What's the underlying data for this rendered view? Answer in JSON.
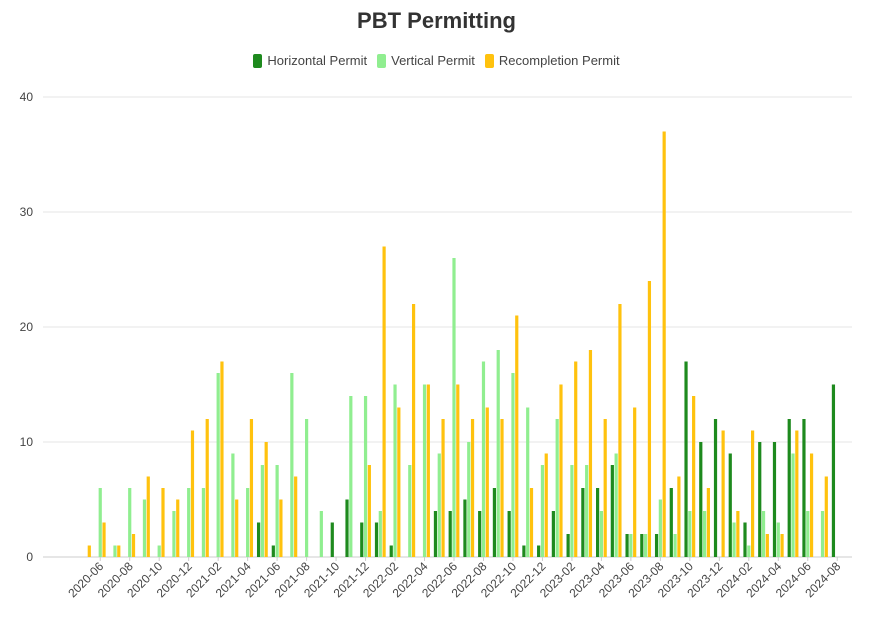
{
  "chart_data": {
    "type": "bar",
    "title": "PBT Permitting",
    "xlabel": "",
    "ylabel": "",
    "ylim": [
      0,
      40
    ],
    "yticks": [
      0,
      10,
      20,
      30,
      40
    ],
    "grid": true,
    "legend_position": "top-center",
    "categories": [
      "2020-05",
      "2020-06",
      "2020-07",
      "2020-08",
      "2020-09",
      "2020-10",
      "2020-11",
      "2020-12",
      "2021-01",
      "2021-02",
      "2021-03",
      "2021-04",
      "2021-05",
      "2021-06",
      "2021-07",
      "2021-08",
      "2021-09",
      "2021-10",
      "2021-11",
      "2021-12",
      "2022-01",
      "2022-02",
      "2022-03",
      "2022-04",
      "2022-05",
      "2022-06",
      "2022-07",
      "2022-08",
      "2022-09",
      "2022-10",
      "2022-11",
      "2022-12",
      "2023-01",
      "2023-02",
      "2023-03",
      "2023-04",
      "2023-05",
      "2023-06",
      "2023-07",
      "2023-08",
      "2023-09",
      "2023-10",
      "2023-11",
      "2023-12",
      "2024-01",
      "2024-02",
      "2024-03",
      "2024-04",
      "2024-05",
      "2024-06",
      "2024-07",
      "2024-08"
    ],
    "x_tick_labels": [
      "2020-06",
      "2020-08",
      "2020-10",
      "2020-12",
      "2021-02",
      "2021-04",
      "2021-06",
      "2021-08",
      "2021-10",
      "2021-12",
      "2022-02",
      "2022-04",
      "2022-06",
      "2022-08",
      "2022-10",
      "2022-12",
      "2023-02",
      "2023-04",
      "2023-06",
      "2023-08",
      "2023-10",
      "2023-12",
      "2024-02",
      "2024-04",
      "2024-06",
      "2024-08"
    ],
    "series": [
      {
        "name": "Horizontal Permit",
        "color": "#1e8a1e",
        "values": [
          0,
          0,
          0,
          0,
          0,
          0,
          0,
          0,
          0,
          0,
          0,
          0,
          3,
          1,
          0,
          0,
          0,
          3,
          5,
          3,
          3,
          1,
          0,
          0,
          4,
          4,
          5,
          4,
          6,
          4,
          1,
          1,
          4,
          2,
          6,
          6,
          8,
          2,
          2,
          2,
          6,
          17,
          10,
          12,
          9,
          3,
          10,
          10,
          12,
          12,
          0,
          15
        ]
      },
      {
        "name": "Vertical Permit",
        "color": "#90ee90",
        "values": [
          0,
          6,
          1,
          6,
          5,
          1,
          4,
          6,
          6,
          16,
          9,
          6,
          8,
          8,
          16,
          12,
          4,
          0,
          14,
          14,
          4,
          15,
          8,
          15,
          9,
          26,
          10,
          17,
          18,
          16,
          13,
          8,
          12,
          8,
          8,
          4,
          9,
          2,
          2,
          5,
          2,
          4,
          4,
          0,
          3,
          1,
          4,
          3,
          9,
          4,
          4,
          0
        ]
      },
      {
        "name": "Recompletion Permit",
        "color": "#ffc20e",
        "values": [
          1,
          3,
          1,
          2,
          7,
          6,
          5,
          11,
          12,
          17,
          5,
          12,
          10,
          5,
          7,
          0,
          0,
          0,
          0,
          8,
          27,
          13,
          22,
          15,
          12,
          15,
          12,
          13,
          12,
          21,
          6,
          9,
          15,
          17,
          18,
          12,
          22,
          13,
          24,
          37,
          7,
          14,
          6,
          11,
          4,
          11,
          2,
          2,
          11,
          9,
          7,
          0
        ]
      }
    ]
  }
}
